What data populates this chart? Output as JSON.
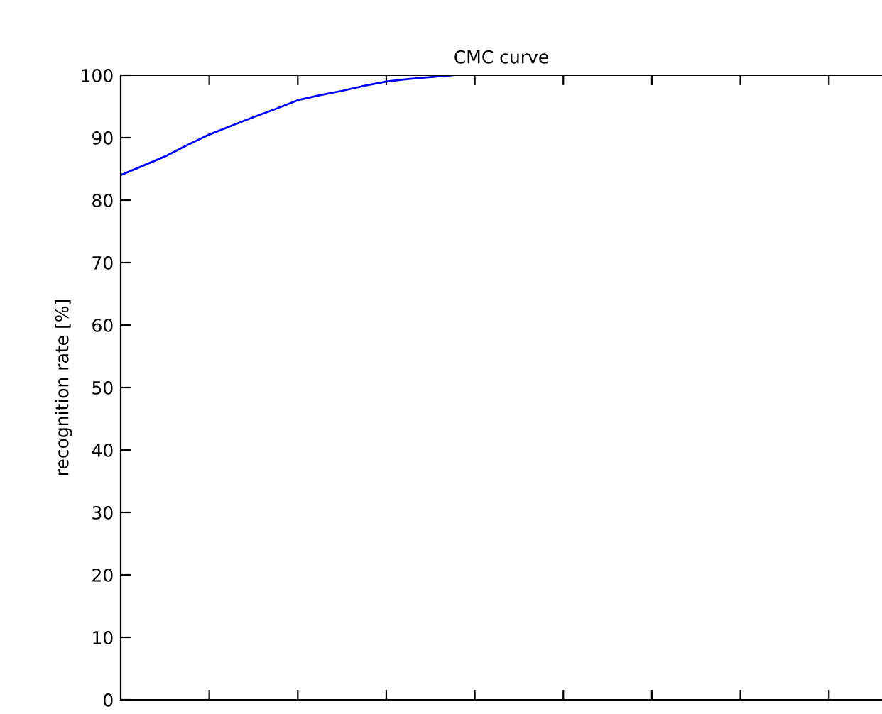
{
  "chart_data": {
    "type": "line",
    "title": "CMC curve",
    "ylabel": "recognition rate [%]",
    "categories": [
      null,
      null,
      null,
      null,
      null,
      null,
      null,
      null,
      null,
      null,
      null,
      null,
      null,
      null,
      null,
      null,
      null,
      null,
      null,
      null,
      null,
      null,
      null,
      null,
      null,
      null,
      null,
      null,
      null,
      null,
      null,
      null,
      null,
      null,
      null
    ],
    "series": [
      {
        "color": "#0000ff",
        "values": [
          84,
          85.5,
          87,
          88.8,
          90.5,
          91.9,
          93.3,
          94.6,
          96,
          96.8,
          97.5,
          98.3,
          99,
          99.4,
          99.7,
          100,
          null,
          null,
          null,
          null,
          null,
          null,
          null,
          null,
          null,
          null,
          null,
          null,
          null,
          null,
          null,
          null,
          null,
          null,
          null
        ]
      }
    ],
    "ylim": [
      0,
      100
    ],
    "yticks": [
      0,
      10,
      20,
      30,
      40,
      50,
      60,
      70,
      80,
      90,
      100
    ],
    "tick_labels": "y",
    "grid": false,
    "legend": false,
    "marker": "none",
    "line_style": "solid"
  }
}
